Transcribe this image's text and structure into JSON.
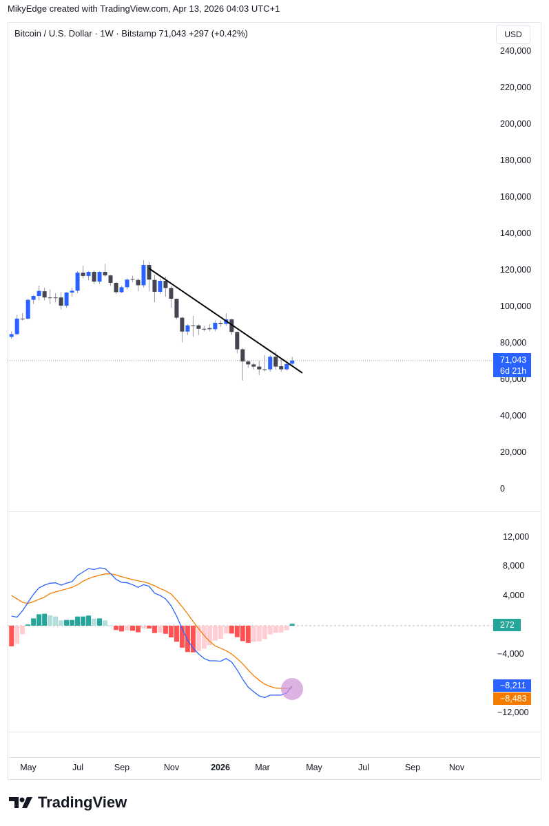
{
  "credit": "MikyEdge created with TradingView.com, Apr 13, 2026 04:03 UTC+1",
  "legend": "Bitcoin / U.S. Dollar · 1W · Bitstamp  71,043  +297 (+0.42%)",
  "currency": "USD",
  "price_axis": [
    "240,000",
    "220,000",
    "200,000",
    "180,000",
    "160,000",
    "140,000",
    "120,000",
    "100,000",
    "80,000",
    "60,000",
    "40,000",
    "20,000",
    "0"
  ],
  "macd_axis": [
    "12,000",
    "8,000",
    "4,000",
    "−4,000",
    "−12,000"
  ],
  "time_axis": [
    "May",
    "Jul",
    "Sep",
    "Nov",
    "2026",
    "Mar",
    "May",
    "Jul",
    "Sep",
    "Nov"
  ],
  "last_price": {
    "value": "71,043",
    "countdown": "6d 21h",
    "color": "#2962ff"
  },
  "macd_tags": {
    "hist": "272",
    "macd": "−8,211",
    "signal": "−8,483"
  },
  "colors": {
    "up": "#2962ff",
    "down": "#434651",
    "macd": "#2962ff",
    "signal": "#f57c00",
    "hist_up_strong": "#26a69a",
    "hist_up_weak": "#b2dfdb",
    "hist_dn_strong": "#ff5252",
    "hist_dn_weak": "#ffcdd2"
  },
  "brand": "TradingView",
  "chart_data": {
    "type": "candlestick",
    "unit": "thousand USD",
    "ohlc": [
      [
        84,
        87,
        83,
        85.5
      ],
      [
        85.5,
        96,
        85,
        94
      ],
      [
        94,
        97,
        93,
        94
      ],
      [
        94,
        105,
        93.5,
        104.3
      ],
      [
        104.3,
        107,
        102,
        106.4
      ],
      [
        106.4,
        112,
        104,
        109.2
      ],
      [
        109,
        111,
        104,
        105.6
      ],
      [
        105.6,
        110,
        102,
        105.6
      ],
      [
        105.6,
        108,
        103,
        105.6
      ],
      [
        105.6,
        108.5,
        99,
        101.1
      ],
      [
        101.1,
        108.5,
        100,
        108.3
      ],
      [
        108.3,
        111,
        106,
        109.3
      ],
      [
        109.3,
        120,
        108,
        119.2
      ],
      [
        119.2,
        123,
        116,
        117.4
      ],
      [
        117.4,
        120,
        115,
        119.6
      ],
      [
        119.6,
        120.5,
        113,
        114.3
      ],
      [
        114.3,
        120,
        113,
        119.6
      ],
      [
        119.6,
        124,
        117,
        117.7
      ],
      [
        117.7,
        118,
        112,
        113.6
      ],
      [
        113.6,
        114,
        107.5,
        108.5
      ],
      [
        108.5,
        112,
        108,
        111.2
      ],
      [
        111.2,
        116,
        110,
        115.4
      ],
      [
        115.8,
        117.5,
        114,
        115.8
      ],
      [
        115.2,
        116,
        109,
        112.3
      ],
      [
        112.3,
        126,
        111,
        123.4
      ],
      [
        123.4,
        125,
        109,
        115.4
      ],
      [
        115.2,
        118,
        103,
        108.7
      ],
      [
        108.7,
        116,
        107.5,
        114.7
      ],
      [
        114.7,
        117,
        106,
        110.8
      ],
      [
        110.8,
        112,
        100,
        104.9
      ],
      [
        104.9,
        105,
        93.5,
        94.5
      ],
      [
        94.5,
        95,
        81,
        86.9
      ],
      [
        86.9,
        91,
        85,
        90.3
      ],
      [
        90.3,
        95.5,
        84,
        90.3
      ],
      [
        90.3,
        91,
        85,
        88.4
      ],
      [
        88.4,
        90,
        87,
        88.4
      ],
      [
        88.8,
        91,
        87,
        88.2
      ],
      [
        88.2,
        93,
        87,
        91.7
      ],
      [
        91.7,
        93,
        89.5,
        91.1
      ],
      [
        91.1,
        97,
        90,
        93.6
      ],
      [
        93.6,
        94,
        85,
        86.7
      ],
      [
        86.7,
        87,
        75,
        77.2
      ],
      [
        77.2,
        78,
        60,
        70.5
      ],
      [
        70.5,
        71,
        67,
        68.9
      ],
      [
        68.9,
        70,
        66,
        67.7
      ],
      [
        67.7,
        71,
        63,
        66.2
      ],
      [
        66.2,
        74,
        65,
        66.2
      ],
      [
        66.2,
        74,
        65,
        73.1
      ],
      [
        73.1,
        76,
        66,
        67.7
      ],
      [
        67.9,
        72,
        65,
        66.2
      ],
      [
        66.2,
        70,
        65.5,
        69.1
      ],
      [
        69.3,
        73,
        68.5,
        71.0
      ]
    ],
    "macd": [
      1.31,
      1.16,
      2.03,
      3.19,
      4.28,
      5.15,
      5.53,
      5.78,
      5.84,
      5.53,
      5.78,
      6.0,
      6.84,
      7.31,
      7.78,
      7.65,
      7.87,
      7.78,
      7.09,
      6.31,
      5.9,
      5.84,
      5.59,
      5.22,
      5.59,
      5.37,
      4.43,
      4.12,
      3.65,
      2.72,
      1.31,
      -0.4,
      -1.97,
      -3.06,
      -3.84,
      -4.47,
      -4.78,
      -4.78,
      -4.84,
      -4.47,
      -4.94,
      -6.03,
      -7.28,
      -8.37,
      -9.0,
      -9.56,
      -9.78,
      -9.46,
      -9.46,
      -9.46,
      -9.15,
      -8.21
    ],
    "signal": [
      4.12,
      3.65,
      3.19,
      3.03,
      3.28,
      3.59,
      3.9,
      4.37,
      4.59,
      4.81,
      5.0,
      5.22,
      5.59,
      6.06,
      6.4,
      6.68,
      6.87,
      7.06,
      7.06,
      6.9,
      6.68,
      6.47,
      6.28,
      6.12,
      5.97,
      5.75,
      5.43,
      5.06,
      4.75,
      4.31,
      3.5,
      2.59,
      1.62,
      0.56,
      -0.4,
      -1.34,
      -2.12,
      -2.75,
      -3.06,
      -3.4,
      -3.87,
      -4.47,
      -5.18,
      -6.03,
      -6.81,
      -7.43,
      -7.96,
      -8.28,
      -8.5,
      -8.53,
      -8.53,
      -8.48
    ],
    "trendline": {
      "from": 125,
      "to": 68
    },
    "price_range": [
      0,
      240
    ],
    "macd_range": [
      -12,
      12
    ]
  }
}
